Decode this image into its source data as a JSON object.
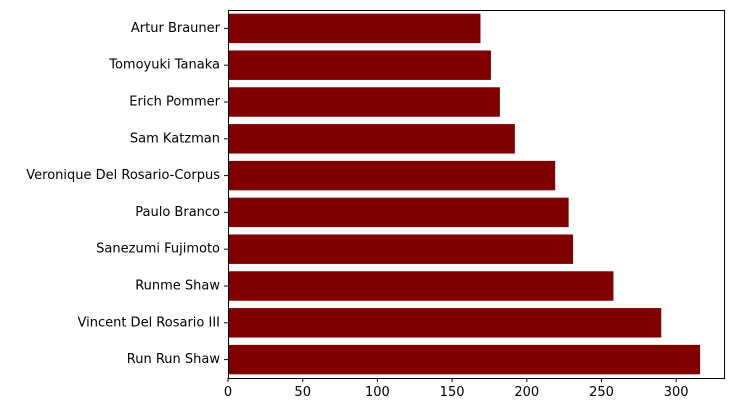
{
  "chart_data": {
    "type": "bar",
    "orientation": "horizontal",
    "title": "",
    "xlabel": "",
    "ylabel": "",
    "categories": [
      "Run Run Shaw",
      "Vincent Del Rosario III",
      "Runme Shaw",
      "Sanezumi Fujimoto",
      "Paulo Branco",
      "Veronique Del Rosario-Corpus",
      "Sam Katzman",
      "Erich Pommer",
      "Tomoyuki Tanaka",
      "Artur Brauner"
    ],
    "values": [
      316,
      290,
      258,
      231,
      228,
      219,
      192,
      182,
      176,
      169
    ],
    "xlim": [
      0,
      332
    ],
    "xticks": [
      0,
      50,
      100,
      150,
      200,
      250,
      300
    ],
    "bar_color": "#800000",
    "grid": false,
    "legend": "none"
  }
}
